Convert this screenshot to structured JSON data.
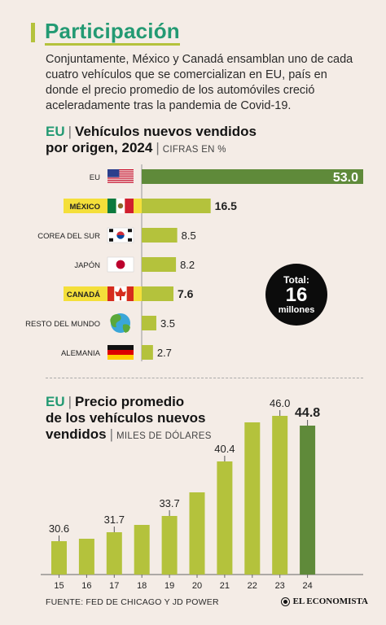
{
  "header": {
    "title": "Participación",
    "intro": "Conjuntamente, México y Canadá ensamblan uno de cada cuatro vehículos que se comercializan en EU, país en donde el precio promedio de los automóviles creció aceleradamente tras la pandemia de Covid-19."
  },
  "colors": {
    "accent_green": "#239a73",
    "bar_light": "#b4c23c",
    "bar_dark": "#5f8a3a",
    "highlight": "#f4df3a"
  },
  "chart1": {
    "title_prefix": "EU",
    "title_line1": "Vehículos nuevos vendidos",
    "title_line2": "por origen, 2024",
    "unit": "CIFRAS EN %",
    "total_label": "Total:",
    "total_value": "16",
    "total_unit": "millones"
  },
  "chart2": {
    "title_prefix": "EU",
    "title_line1": "Precio promedio",
    "title_line2": "de los vehículos nuevos",
    "title_line3": "vendidos",
    "unit": "MILES DE DÓLARES"
  },
  "footer": {
    "source": "FUENTE: FED DE CHICAGO Y JD POWER",
    "brand": "EL ECONOMISTA"
  },
  "chart_data": [
    {
      "type": "bar",
      "orientation": "horizontal",
      "title": "Vehículos nuevos vendidos por origen, 2024",
      "unit": "CIFRAS EN %",
      "categories": [
        "EU",
        "MÉXICO",
        "COREA DEL SUR",
        "JAPÓN",
        "CANADÁ",
        "RESTO DEL MUNDO",
        "ALEMANIA"
      ],
      "values": [
        53.0,
        16.5,
        8.5,
        8.2,
        7.6,
        3.5,
        2.7
      ],
      "labels": [
        "53.0",
        "16.5",
        "8.5",
        "8.2",
        "7.6",
        "3.5",
        "2.7"
      ],
      "highlighted": [
        "MÉXICO",
        "CANADÁ"
      ],
      "icons": [
        "flag-usa-icon",
        "flag-mexico-icon",
        "flag-south-korea-icon",
        "flag-japan-icon",
        "flag-canada-icon",
        "globe-icon",
        "flag-germany-icon"
      ],
      "xlim": [
        0,
        53
      ]
    },
    {
      "type": "bar",
      "title": "Precio promedio de los vehículos nuevos vendidos",
      "unit": "MILES DE DÓLARES",
      "categories": [
        "15",
        "16",
        "17",
        "18",
        "19",
        "20",
        "21",
        "22",
        "23",
        "24"
      ],
      "values": [
        30.6,
        30.9,
        31.7,
        32.6,
        33.7,
        36.6,
        40.4,
        45.2,
        46.0,
        44.8
      ],
      "labels": [
        "30.6",
        "",
        "31.7",
        "",
        "33.7",
        "",
        "40.4",
        "",
        "46.0",
        "44.8"
      ],
      "ylim": [
        26.5,
        46.3
      ]
    }
  ]
}
